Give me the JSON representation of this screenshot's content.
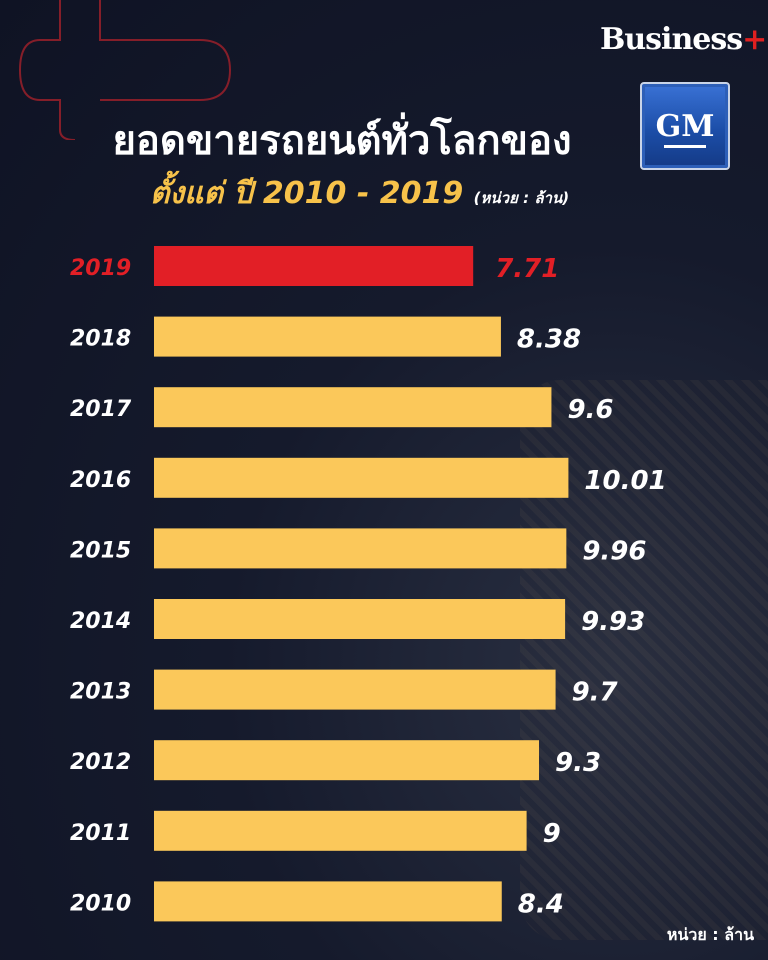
{
  "header": {
    "brand_name": "Business",
    "brand_plus": "+",
    "title": "ยอดขายรถยนต์ทั่วโลกของ",
    "subtitle": "ตั้งแต่ ปี 2010 - 2019",
    "subtitle_unit": "(หน่วย : ล้าน)",
    "logo_text": "GM"
  },
  "footer": {
    "unit": "หน่วย : ล้าน"
  },
  "colors": {
    "highlight": "#e21f26",
    "bar": "#fbc85a",
    "label": "#ffffff",
    "accent_text": "#f7c24a"
  },
  "chart_data": {
    "type": "bar",
    "orientation": "horizontal",
    "categories": [
      "2019",
      "2018",
      "2017",
      "2016",
      "2015",
      "2014",
      "2013",
      "2012",
      "2011",
      "2010"
    ],
    "values": [
      7.71,
      8.38,
      9.6,
      10.01,
      9.96,
      9.93,
      9.7,
      9.3,
      9,
      8.4
    ],
    "value_labels": [
      "7.71",
      "8.38",
      "9.6",
      "10.01",
      "9.96",
      "9.93",
      "9.7",
      "9.3",
      "9",
      "8.4"
    ],
    "highlight_category": "2019",
    "title": "ยอดขายรถยนต์ทั่วโลกของ GM",
    "xlabel": "",
    "ylabel": "",
    "grid": false,
    "legend": "none"
  }
}
